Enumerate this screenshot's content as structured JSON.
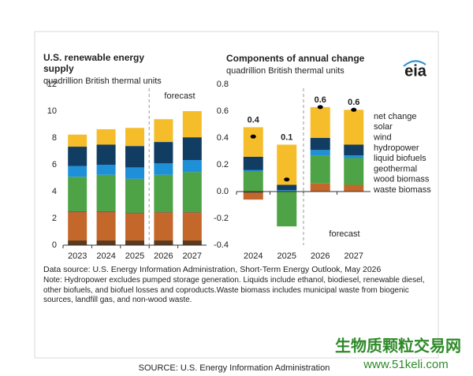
{
  "eia_logo": "eia",
  "chart_data": [
    {
      "type": "bar",
      "stacked": true,
      "title": "U.S. renewable energy supply",
      "subtitle": "quadrillion British thermal units",
      "annotation": "forecast",
      "categories": [
        "2023",
        "2024",
        "2025",
        "2026",
        "2027"
      ],
      "series": [
        {
          "color": "#5b3a1d",
          "values": [
            0.35,
            0.35,
            0.35,
            0.35,
            0.35
          ]
        },
        {
          "color": "#c4672a",
          "values": [
            2.1,
            2.1,
            2.0,
            2.05,
            2.05
          ]
        },
        {
          "color": "#a3282c",
          "values": [
            0.05,
            0.05,
            0.05,
            0.05,
            0.05
          ]
        },
        {
          "color": "#4ea346",
          "values": [
            2.6,
            2.75,
            2.55,
            2.8,
            3.0
          ]
        },
        {
          "color": "#1e90d8",
          "values": [
            0.8,
            0.75,
            0.85,
            0.85,
            0.9
          ]
        },
        {
          "color": "#123d63",
          "values": [
            1.45,
            1.5,
            1.6,
            1.6,
            1.7
          ]
        },
        {
          "color": "#f6bd2b",
          "values": [
            0.9,
            1.15,
            1.35,
            1.7,
            1.95
          ]
        }
      ],
      "ylim": [
        0,
        12
      ],
      "yticks": [
        0,
        2,
        4,
        6,
        8,
        10,
        12
      ]
    },
    {
      "type": "bar",
      "stacked": true,
      "title": "Components of annual change",
      "subtitle": "quadrillion British thermal units",
      "annotation": "forecast",
      "categories": [
        "2024",
        "2025",
        "2026",
        "2027"
      ],
      "series": [
        {
          "name": "waste biomass",
          "color": "#5b3a1d",
          "values": [
            -0.01,
            0,
            0,
            0
          ]
        },
        {
          "name": "wood biomass",
          "color": "#c4672a",
          "values": [
            -0.05,
            0,
            0.06,
            0.05
          ]
        },
        {
          "name": "geothermal",
          "color": "#a3282c",
          "values": [
            0,
            0,
            0,
            0
          ]
        },
        {
          "name": "liquid biofuels",
          "color": "#4ea346",
          "values": [
            0.15,
            -0.26,
            0.21,
            0.2
          ]
        },
        {
          "name": "hydropower",
          "color": "#1e90d8",
          "values": [
            0.01,
            0.01,
            0.04,
            0.02
          ]
        },
        {
          "name": "wind",
          "color": "#123d63",
          "values": [
            0.1,
            0.04,
            0.09,
            0.08
          ]
        },
        {
          "name": "solar",
          "color": "#f6bd2b",
          "values": [
            0.22,
            0.3,
            0.23,
            0.26
          ]
        }
      ],
      "net_change": {
        "name": "net change",
        "color": "#000000",
        "values": [
          0.41,
          0.09,
          0.63,
          0.61
        ],
        "value_labels": [
          "0.4",
          "0.1",
          "0.6",
          "0.6"
        ]
      },
      "legend": "right",
      "ylim": [
        -0.4,
        0.8
      ],
      "yticks": [
        -0.4,
        -0.2,
        {
          "value": 0,
          "label": "0.0"
        },
        0.2,
        0.4,
        0.6,
        0.8
      ]
    }
  ],
  "data_source": "Data source: U.S. Energy Information Administration, Short-Term Energy Outlook, May 2026",
  "note": "Note: Hydropower excludes pumped storage generation. Liquids include ethanol, biodiesel, renewable diesel, other biofuels, and biofuel losses and coproducts.Waste biomass includes municipal waste from biogenic sources, landfill gas, and non-wood waste.",
  "source": "SOURCE: U.S. Energy Information Administration",
  "watermark": [
    "生物质颗粒交易网",
    "www.51keli.com"
  ]
}
